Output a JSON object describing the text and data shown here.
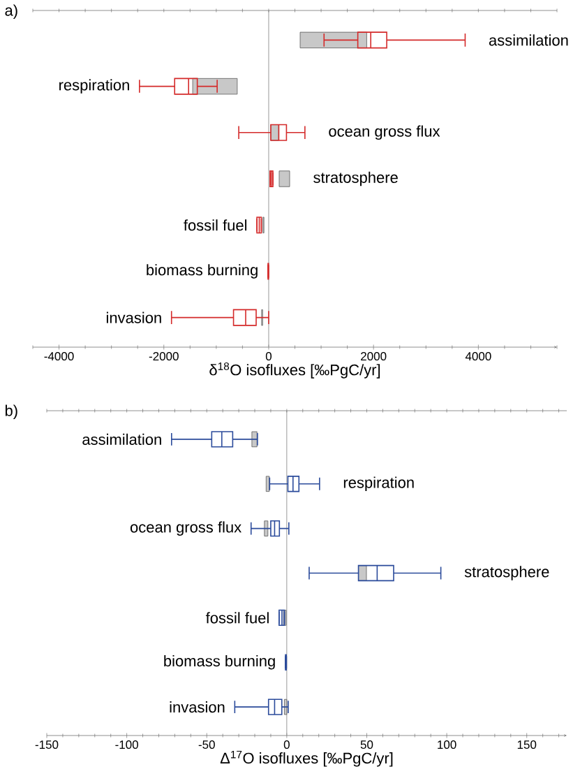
{
  "chart_data": [
    {
      "type": "box",
      "title": "a)",
      "xlabel": "δ$^{18}$O isofluxes [‰PgC/yr]",
      "orientation": "horizontal",
      "categories": [
        "assimilation",
        "respiration",
        "ocean gross flux",
        "stratosphere",
        "fossil fuel",
        "biomass burning",
        "invasion"
      ],
      "xlim": [
        -4500,
        5500
      ],
      "xticks": [
        {
          "value": -4500,
          "label": null
        },
        -4000,
        {
          "value": -3500,
          "label": null
        },
        {
          "value": -3000,
          "label": null
        },
        {
          "value": -2500,
          "label": null
        },
        -2000,
        {
          "value": -1500,
          "label": null
        },
        {
          "value": -1000,
          "label": null
        },
        {
          "value": -500,
          "label": null
        },
        0,
        {
          "value": 500,
          "label": null
        },
        {
          "value": 1000,
          "label": null
        },
        {
          "value": 1500,
          "label": null
        },
        2000,
        {
          "value": 2500,
          "label": null
        },
        {
          "value": 3000,
          "label": null
        },
        {
          "value": 3500,
          "label": null
        },
        4000,
        {
          "value": 4500,
          "label": null
        },
        {
          "value": 5000,
          "label": null
        },
        {
          "value": 5500,
          "label": null
        }
      ],
      "ref_lines": [
        {
          "axis": "x",
          "value": 0,
          "color": "#999999"
        }
      ],
      "series": [
        {
          "type": "bar",
          "color": "#c8c8c8",
          "base": [
            600,
            -1450,
            40,
            200,
            -110,
            null,
            -135
          ],
          "values": [
            1270,
            850,
            150,
            200,
            20,
            null,
            20
          ]
        },
        {
          "type": "box",
          "color": "#d42a2a",
          "boxes": [
            {
              "low": 1056,
              "q1": 1700,
              "median": 1947,
              "q3": 2252,
              "high": 3748
            },
            {
              "low": -2465,
              "q1": -1794,
              "median": -1528,
              "q3": -1362,
              "high": -983
            },
            {
              "low": -571,
              "q1": 40,
              "median": 193,
              "q3": 339,
              "high": 691
            },
            {
              "low": 25,
              "q1": 25,
              "median": 50,
              "q3": 80,
              "high": 80
            },
            {
              "low": -225,
              "q1": -225,
              "median": -180,
              "q3": -140,
              "high": -140
            },
            {
              "low": -15,
              "q1": -12,
              "median": -8,
              "q3": -4,
              "high": -2
            },
            {
              "low": -1854,
              "q1": -671,
              "median": -439,
              "q3": -239,
              "high": 0
            }
          ]
        }
      ]
    },
    {
      "type": "box",
      "title": "b)",
      "xlabel": "Δ$^{17}$O isofluxes [‰PgC/yr]",
      "orientation": "horizontal",
      "categories": [
        "assimilation",
        "respiration",
        "ocean gross flux",
        "stratosphere",
        "fossil fuel",
        "biomass burning",
        "invasion"
      ],
      "xlim": [
        -150,
        175
      ],
      "xticks": [
        -150,
        {
          "value": -140,
          "label": null
        },
        {
          "value": -130,
          "label": null
        },
        {
          "value": -120,
          "label": null
        },
        {
          "value": -110,
          "label": null
        },
        -100,
        {
          "value": -90,
          "label": null
        },
        {
          "value": -80,
          "label": null
        },
        {
          "value": -70,
          "label": null
        },
        {
          "value": -60,
          "label": null
        },
        -50,
        {
          "value": -40,
          "label": null
        },
        {
          "value": -30,
          "label": null
        },
        {
          "value": -20,
          "label": null
        },
        {
          "value": -10,
          "label": null
        },
        0,
        {
          "value": 10,
          "label": null
        },
        {
          "value": 20,
          "label": null
        },
        {
          "value": 30,
          "label": null
        },
        {
          "value": 40,
          "label": null
        },
        50,
        {
          "value": 60,
          "label": null
        },
        {
          "value": 70,
          "label": null
        },
        {
          "value": 80,
          "label": null
        },
        {
          "value": 90,
          "label": null
        },
        100,
        {
          "value": 110,
          "label": null
        },
        {
          "value": 120,
          "label": null
        },
        {
          "value": 130,
          "label": null
        },
        {
          "value": 140,
          "label": null
        },
        150,
        {
          "value": 160,
          "label": null
        },
        {
          "value": 170,
          "label": null
        }
      ],
      "ref_lines": [
        {
          "axis": "x",
          "value": 0,
          "color": "#999999"
        }
      ],
      "series": [
        {
          "type": "bar",
          "color": "#c8c8c8",
          "base": [
            -21.8,
            -12.9,
            -14,
            44.8,
            -2,
            null,
            -1.5
          ],
          "values": [
            3.2,
            2,
            2.2,
            5,
            1.6,
            null,
            1.5
          ]
        },
        {
          "type": "box",
          "color": "#2b4b9b",
          "boxes": [
            {
              "low": -72,
              "q1": -46.9,
              "median": -40.6,
              "q3": -33.8,
              "high": -18.3
            },
            {
              "low": -10.7,
              "q1": 0.7,
              "median": 3.9,
              "q3": 7.6,
              "high": 20.5
            },
            {
              "low": -22.3,
              "q1": -10,
              "median": -7.6,
              "q3": -4.6,
              "high": 1.3
            },
            {
              "low": 14,
              "q1": 44.8,
              "median": 56.5,
              "q3": 66.8,
              "high": 96.3
            },
            {
              "low": -4.8,
              "q1": -4.8,
              "median": -3,
              "q3": -1.5,
              "high": -1.5
            },
            {
              "low": -0.9,
              "q1": -0.8,
              "median": -0.5,
              "q3": -0.3,
              "high": -0.2
            },
            {
              "low": -32.5,
              "q1": -11.4,
              "median": -7.6,
              "q3": -3.1,
              "high": 0.9
            }
          ]
        }
      ]
    }
  ]
}
